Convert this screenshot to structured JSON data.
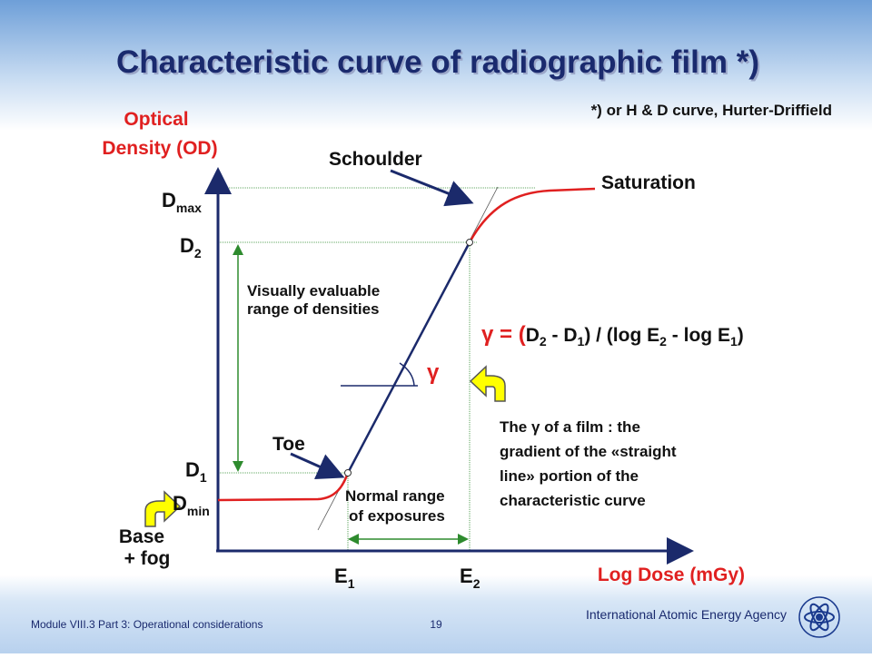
{
  "title": "Characteristic curve of radiographic film *)",
  "subtitle": "*) or H & D curve, Hurter-Driffield",
  "y_axis_label": [
    "Optical",
    "Density (OD)"
  ],
  "x_axis_label": "Log Dose (mGy)",
  "labels": {
    "d_max": {
      "base": "D",
      "sub": "max"
    },
    "d_2": {
      "base": "D",
      "sub": "2"
    },
    "d_1": {
      "base": "D",
      "sub": "1"
    },
    "d_min": {
      "base": "D",
      "sub": "min"
    },
    "e_1": {
      "base": "E",
      "sub": "1"
    },
    "e_2": {
      "base": "E",
      "sub": "2"
    }
  },
  "annotations": {
    "shoulder": "Schoulder",
    "saturation": "Saturation",
    "toe": "Toe",
    "gamma": "γ",
    "visual_range": [
      "Visually evaluable",
      "range of densities"
    ],
    "normal_range": [
      "Normal range",
      "of exposures"
    ],
    "base_fog": [
      "Base",
      "+ fog"
    ]
  },
  "formula": [
    {
      "text": "γ = ("
    },
    {
      "text": "D",
      "sub": "2"
    },
    {
      "text": " - "
    },
    {
      "text": "D",
      "sub": "1"
    },
    {
      "text": ") / (log "
    },
    {
      "text": "E",
      "sub": "2"
    },
    {
      "text": " - log "
    },
    {
      "text": "E",
      "sub": "1"
    },
    {
      "text": ")"
    }
  ],
  "description": [
    "The γ of a film : the",
    "gradient of  the «straight",
    "line» portion of the",
    "characteristic curve"
  ],
  "footer": {
    "module": "Module VIII.3 Part 3: Operational considerations",
    "page": "19",
    "agency": "International Atomic Energy Agency"
  }
}
